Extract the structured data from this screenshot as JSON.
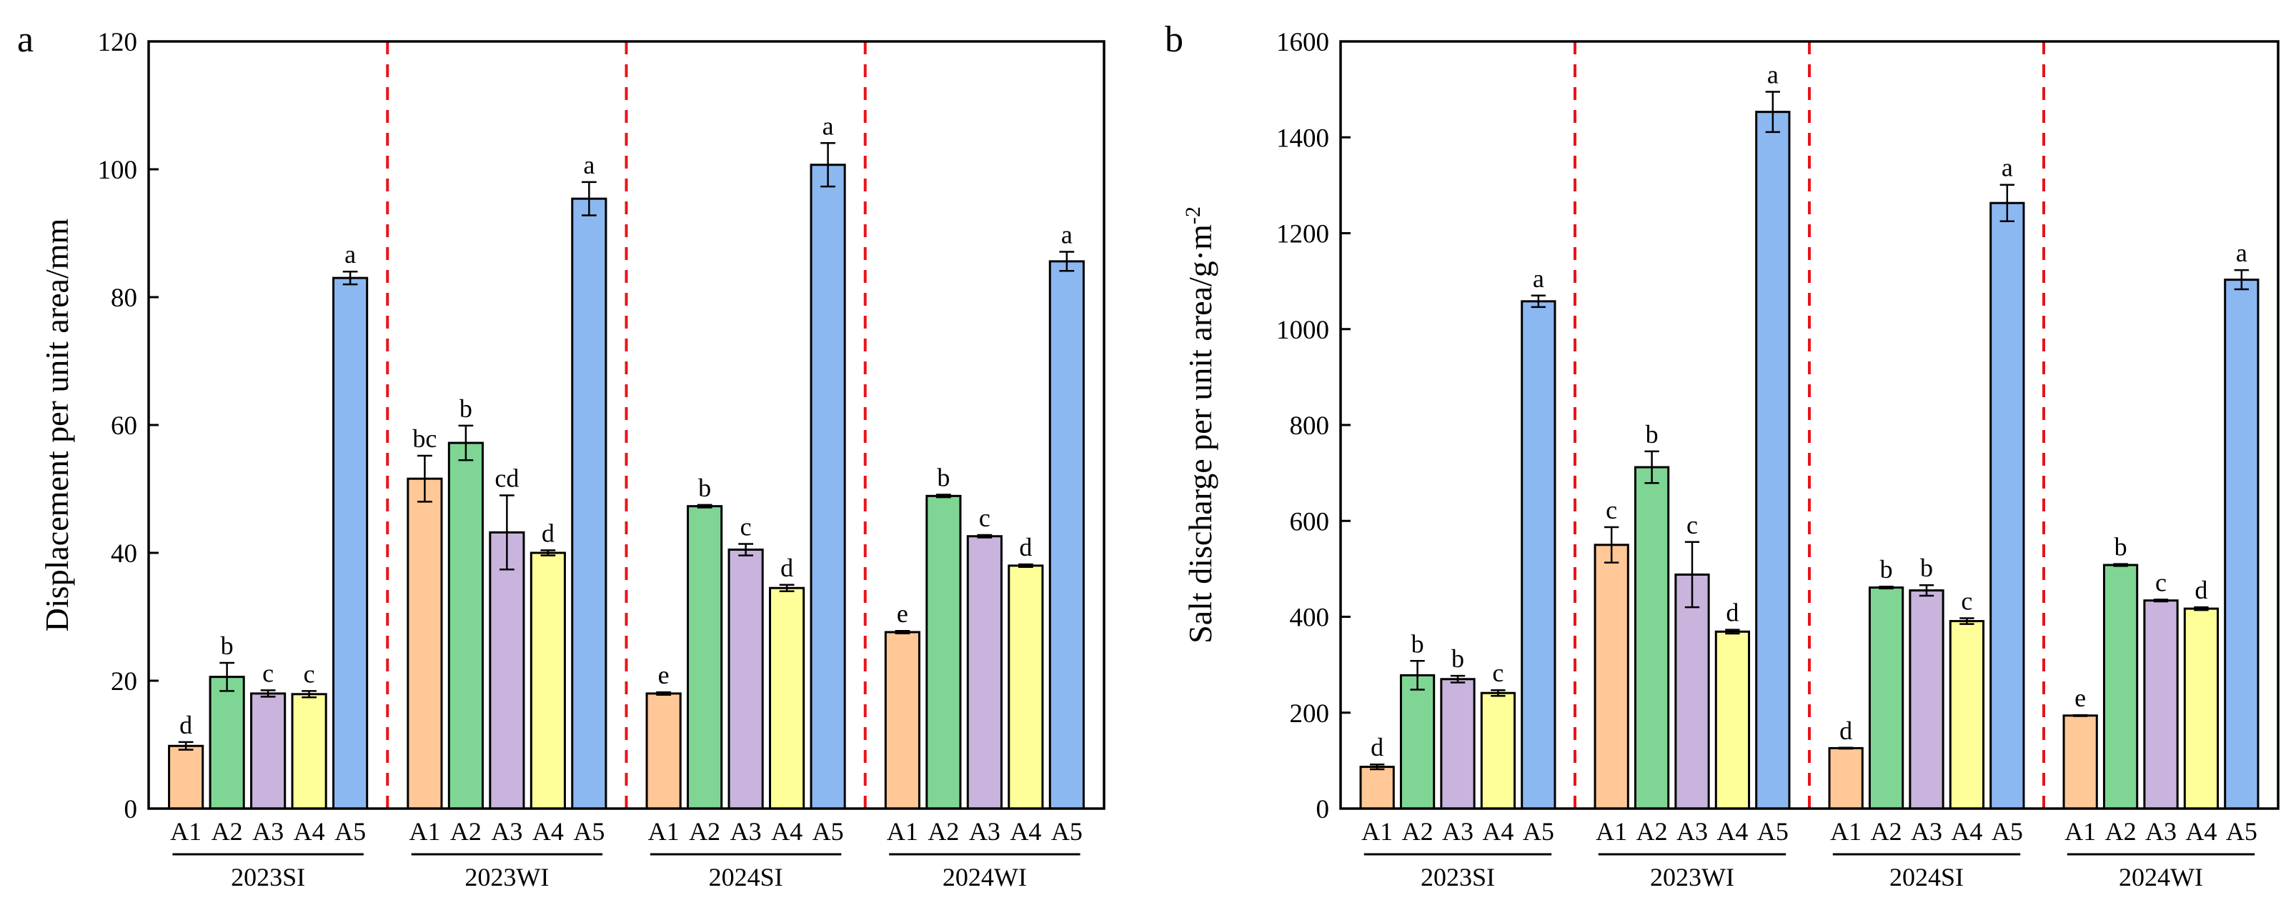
{
  "chart_data": [
    {
      "type": "bar",
      "panel_label": "a",
      "ylabel": "Displacement per unit area/mm",
      "ylabel_sup": "",
      "ylim": [
        0,
        120
      ],
      "yticks": [
        0,
        20,
        40,
        60,
        80,
        100,
        120
      ],
      "categories": [
        "A1",
        "A2",
        "A3",
        "A4",
        "A5"
      ],
      "colors": [
        "#FFC896",
        "#7FD694",
        "#C8B4DC",
        "#FFFF9A",
        "#8CB8F2"
      ],
      "groups": [
        {
          "name": "2023SI",
          "values": [
            9.8,
            20.6,
            18.0,
            17.9,
            83.0
          ],
          "errors": [
            0.6,
            2.2,
            0.5,
            0.5,
            1.0
          ],
          "letters": [
            "d",
            "b",
            "c",
            "c",
            "a"
          ]
        },
        {
          "name": "2023WI",
          "values": [
            51.6,
            57.2,
            43.2,
            40.0,
            95.4
          ],
          "errors": [
            3.6,
            2.7,
            5.8,
            0.4,
            2.6
          ],
          "letters": [
            "bc",
            "b",
            "cd",
            "d",
            "a"
          ]
        },
        {
          "name": "2024SI",
          "values": [
            18.0,
            47.3,
            40.5,
            34.5,
            100.7
          ],
          "errors": [
            0.2,
            0.2,
            0.9,
            0.5,
            3.4
          ],
          "letters": [
            "e",
            "b",
            "c",
            "d",
            "a"
          ]
        },
        {
          "name": "2024WI",
          "values": [
            27.6,
            48.9,
            42.6,
            38.0,
            85.6
          ],
          "errors": [
            0.2,
            0.2,
            0.2,
            0.2,
            1.5
          ],
          "letters": [
            "e",
            "b",
            "c",
            "d",
            "a"
          ]
        }
      ]
    },
    {
      "type": "bar",
      "panel_label": "b",
      "ylabel": "Salt discharge per unit area/g·m",
      "ylabel_sup": "-2",
      "ylim": [
        0,
        1600
      ],
      "yticks": [
        0,
        200,
        400,
        600,
        800,
        1000,
        1200,
        1400,
        1600
      ],
      "categories": [
        "A1",
        "A2",
        "A3",
        "A4",
        "A5"
      ],
      "colors": [
        "#FFC896",
        "#7FD694",
        "#C8B4DC",
        "#FFFF9A",
        "#8CB8F2"
      ],
      "groups": [
        {
          "name": "2023SI",
          "values": [
            87,
            278,
            270,
            241,
            1058
          ],
          "errors": [
            5,
            30,
            7,
            6,
            12
          ],
          "letters": [
            "d",
            "b",
            "b",
            "c",
            "a"
          ]
        },
        {
          "name": "2023WI",
          "values": [
            550,
            712,
            488,
            369,
            1453
          ],
          "errors": [
            37,
            33,
            68,
            4,
            42
          ],
          "letters": [
            "c",
            "b",
            "c",
            "d",
            "a"
          ]
        },
        {
          "name": "2024SI",
          "values": [
            126,
            461,
            455,
            391,
            1263
          ],
          "errors": [
            1,
            2,
            11,
            6,
            38
          ],
          "letters": [
            "d",
            "b",
            "b",
            "c",
            "a"
          ]
        },
        {
          "name": "2024WI",
          "values": [
            194,
            508,
            434,
            417,
            1103
          ],
          "errors": [
            1,
            2,
            2,
            3,
            20
          ],
          "letters": [
            "e",
            "b",
            "c",
            "d",
            "a"
          ]
        }
      ]
    }
  ]
}
